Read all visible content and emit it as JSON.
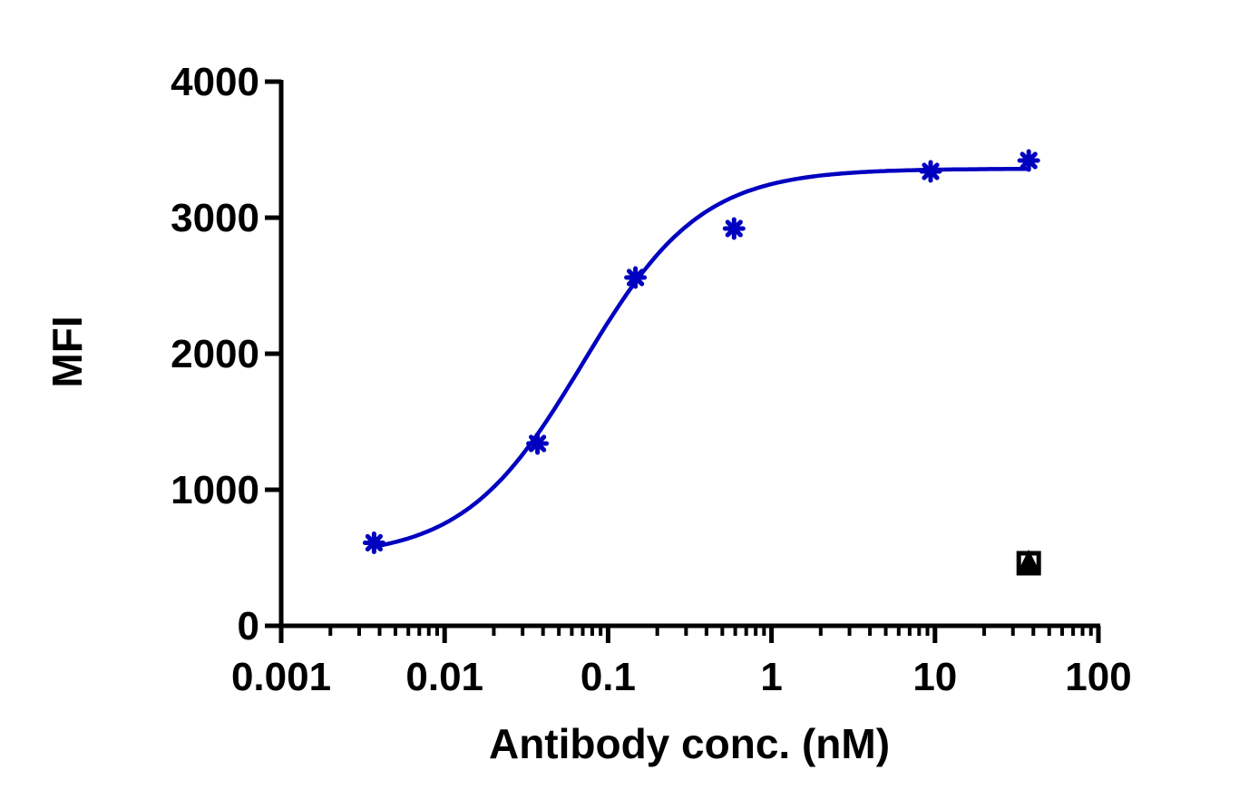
{
  "chart_data": {
    "type": "scatter",
    "title": "",
    "xlabel": "Antibody conc. (nM)",
    "ylabel": "MFI",
    "x_scale": "log",
    "xlim": [
      0.001,
      100
    ],
    "ylim": [
      0,
      4000
    ],
    "x_ticks": [
      "0.001",
      "0.01",
      "0.1",
      "1",
      "10",
      "100"
    ],
    "y_ticks": [
      "0",
      "1000",
      "2000",
      "3000",
      "4000"
    ],
    "grid": false,
    "legend": "none",
    "series": [
      {
        "marker": "asterisk",
        "color": "#0000c0",
        "x": [
          0.0037,
          0.037,
          0.147,
          0.59,
          9.4,
          37.5
        ],
        "y": [
          610,
          1340,
          2560,
          2920,
          3340,
          3420
        ],
        "fit": {
          "model": "4PL",
          "bottom": 500,
          "top": 3360,
          "ec50": 0.07,
          "hill": 1.2,
          "x_range": [
            0.0037,
            37.5
          ]
        }
      },
      {
        "marker": "square-triangle",
        "color": "#000000",
        "x": [
          37.5
        ],
        "y": [
          460
        ]
      }
    ]
  }
}
